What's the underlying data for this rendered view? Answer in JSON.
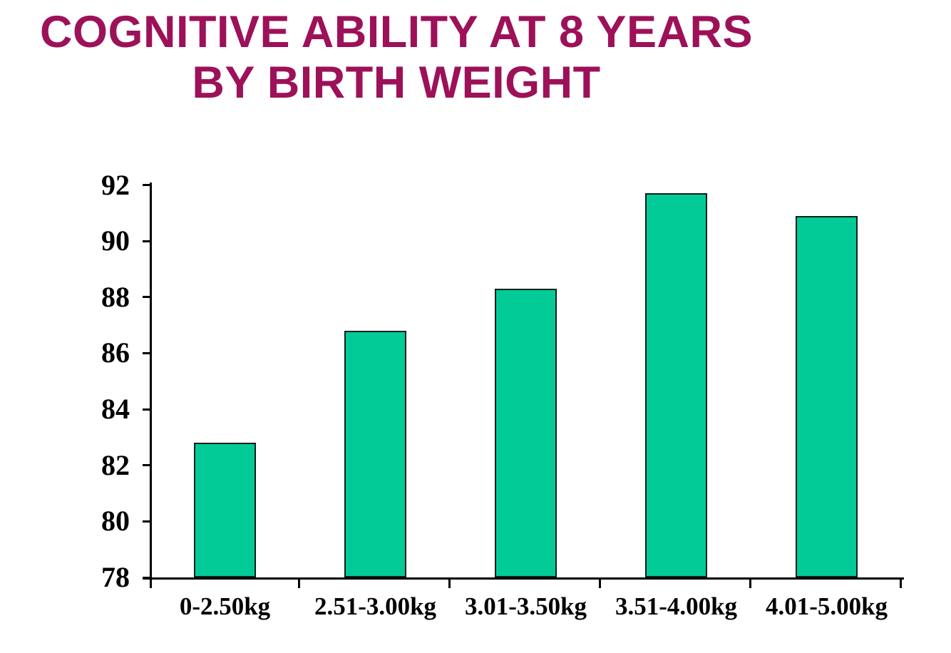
{
  "page": {
    "background_color": "#ffffff"
  },
  "chart_data": {
    "type": "bar",
    "title": "COGNITIVE ABILITY AT 8 YEARS BY BIRTH WEIGHT",
    "title_lines": [
      "COGNITIVE ABILITY AT 8 YEARS",
      "BY BIRTH WEIGHT"
    ],
    "title_color": "#9d1159",
    "categories": [
      "0-2.50kg",
      "2.51-3.00kg",
      "3.01-3.50kg",
      "3.51-4.00kg",
      "4.01-5.00kg"
    ],
    "values": [
      82.8,
      86.8,
      88.3,
      91.7,
      90.9
    ],
    "xlabel": "",
    "ylabel": "",
    "ylim": [
      78,
      92
    ],
    "yticks": [
      78,
      80,
      82,
      84,
      86,
      88,
      90,
      92
    ],
    "grid": false,
    "legend": false,
    "bar_color": "#02cb97",
    "bar_border_color": "#0c1f1a",
    "axis_color": "#000000"
  }
}
